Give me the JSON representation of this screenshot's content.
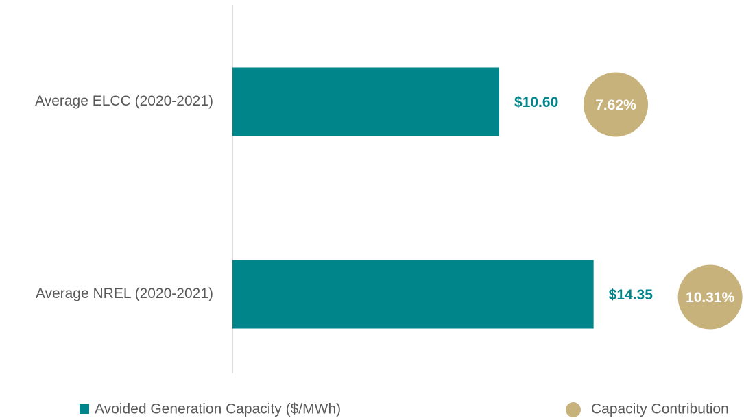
{
  "chart_data": {
    "type": "bar",
    "orientation": "horizontal",
    "categories": [
      "Average ELCC (2020-2021)",
      "Average NREL (2020-2021)"
    ],
    "series": [
      {
        "name": "Avoided Generation Capacity ($/MWh)",
        "color": "#00868a",
        "values": [
          10.6,
          14.35
        ],
        "value_labels": [
          "$10.60",
          "$14.35"
        ]
      },
      {
        "name": "Capacity Contribution",
        "color": "#c8b27c",
        "values": [
          7.62,
          10.31
        ],
        "value_labels": [
          "7.62%",
          "10.31%"
        ]
      }
    ],
    "xlim": [
      0,
      20
    ]
  }
}
